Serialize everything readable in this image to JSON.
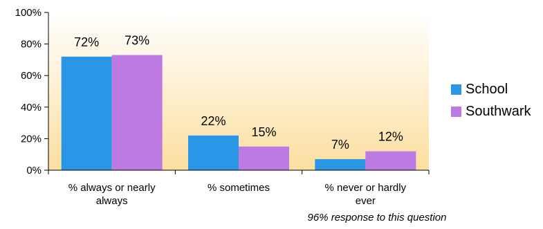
{
  "chart_data": {
    "type": "bar",
    "categories": [
      "% always or nearly always",
      "% sometimes",
      "% never or hardly ever"
    ],
    "category_lines": [
      [
        "% always or nearly",
        "always"
      ],
      [
        "% sometimes"
      ],
      [
        "% never or hardly",
        "ever"
      ]
    ],
    "series": [
      {
        "name": "School",
        "values": [
          72,
          22,
          7
        ],
        "labels": [
          "72%",
          "22%",
          "7%"
        ],
        "color": "#2b96e6"
      },
      {
        "name": "Southwark",
        "values": [
          73,
          15,
          12
        ],
        "labels": [
          "73%",
          "15%",
          "12%"
        ],
        "color": "#bc7ae2"
      }
    ],
    "yticks": [
      0,
      20,
      40,
      60,
      80,
      100
    ],
    "ytick_labels": [
      "0%",
      "20%",
      "40%",
      "60%",
      "80%",
      "100%"
    ],
    "ylim": [
      0,
      100
    ],
    "legend_position": "right",
    "plot_gradient": [
      "#ffffff",
      "#fcdfa0"
    ],
    "note": "96% response to this question"
  }
}
